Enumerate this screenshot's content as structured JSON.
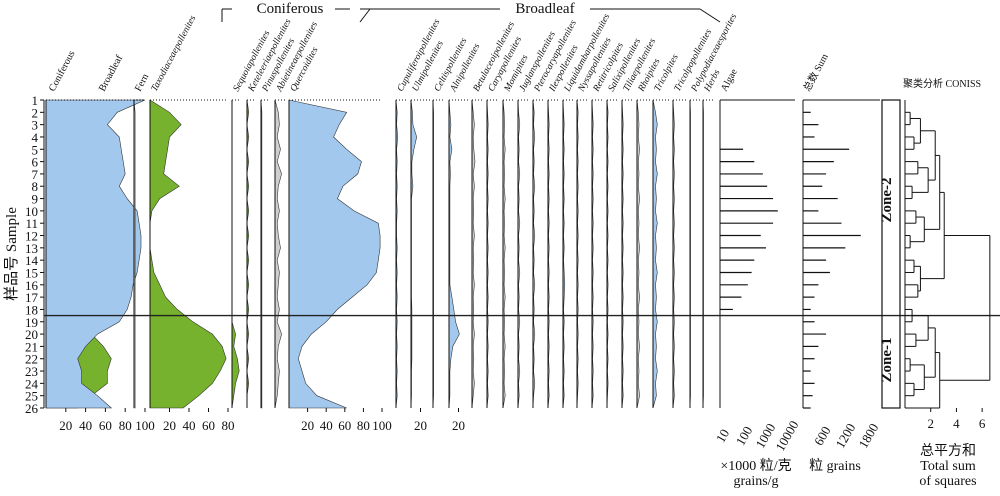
{
  "chart_data": {
    "type": "area",
    "samples": [
      "1",
      "2",
      "3",
      "4",
      "5",
      "6",
      "7",
      "8",
      "9",
      "10",
      "11",
      "12",
      "13",
      "14",
      "15",
      "16",
      "17",
      "18",
      "19",
      "20",
      "21",
      "22",
      "23",
      "24",
      "25",
      "26"
    ],
    "ylabel": "样品号 Sample",
    "group_headers": [
      "Coniferous",
      "Broadleaf"
    ],
    "panels": [
      {
        "name": "Coniferous",
        "ticks": [
          "20",
          "40",
          "60",
          "80",
          "100"
        ],
        "xmax": 100,
        "values": [
          0,
          26,
          36,
          24,
          22,
          20,
          18,
          24,
          16,
          6,
          4,
          2,
          2,
          4,
          6,
          10,
          12,
          16,
          24,
          46,
          58,
          66,
          62,
          62,
          46,
          32
        ],
        "color": "#76b22d"
      },
      {
        "name": "Broadleaf",
        "ticks": [],
        "xmax": 100,
        "values": [
          100,
          72,
          62,
          74,
          76,
          78,
          80,
          74,
          82,
          92,
          94,
          96,
          96,
          94,
          92,
          88,
          86,
          82,
          74,
          52,
          40,
          32,
          36,
          36,
          52,
          66
        ],
        "color": "#a3c8ee"
      },
      {
        "name": "Fern",
        "ticks": [],
        "xmax": 5,
        "values": [
          0,
          0.5,
          0.5,
          0.5,
          0.5,
          0.5,
          0.5,
          0.5,
          0.5,
          0.5,
          0.5,
          0.5,
          0.5,
          0.5,
          0.5,
          0.5,
          0.5,
          0.5,
          0.5,
          0.5,
          0.5,
          0.5,
          0.5,
          0.5,
          0.5,
          0.5
        ],
        "color": "#ffffff"
      },
      {
        "name": "Taxodiaceaepollenites",
        "ticks": [
          "20",
          "40",
          "60",
          "80"
        ],
        "xmax": 80,
        "values": [
          0,
          20,
          32,
          20,
          18,
          16,
          14,
          30,
          10,
          2,
          0,
          0,
          0,
          2,
          4,
          10,
          16,
          28,
          44,
          64,
          74,
          78,
          72,
          64,
          50,
          34
        ],
        "color": "#76b22d"
      },
      {
        "name": "Sequoiapollenites",
        "ticks": [],
        "xmax": 10,
        "values": [
          0,
          0,
          0,
          0,
          0,
          0,
          0,
          0,
          0,
          0,
          0,
          0,
          0,
          0,
          0,
          0,
          0,
          0,
          0,
          4,
          2,
          6,
          8,
          4,
          2,
          0
        ],
        "color": "#76b22d"
      },
      {
        "name": "Keteleeriaepollenites",
        "ticks": [],
        "xmax": 10,
        "values": [
          0,
          2,
          0,
          2,
          0,
          2,
          0,
          2,
          0,
          2,
          0,
          2,
          0,
          2,
          0,
          2,
          0,
          2,
          0,
          2,
          0,
          2,
          0,
          2,
          0,
          0
        ],
        "color": "#76b22d"
      },
      {
        "name": "Pinuspollenites",
        "ticks": [],
        "xmax": 10,
        "values": [
          0,
          1,
          1,
          1,
          1,
          1,
          1,
          1,
          1,
          1,
          1,
          1,
          1,
          1,
          1,
          1,
          1,
          1,
          1,
          1,
          1,
          1,
          1,
          1,
          1,
          1
        ],
        "color": "#76b22d"
      },
      {
        "name": "Abietineaepollenites",
        "ticks": [],
        "xmax": 10,
        "values": [
          0,
          3,
          4,
          2,
          5,
          2,
          6,
          3,
          2,
          4,
          2,
          3,
          5,
          2,
          4,
          3,
          2,
          4,
          2,
          6,
          3,
          2,
          4,
          3,
          2,
          0
        ],
        "color": "#cfcfcf"
      },
      {
        "name": "Quercoidites",
        "ticks": [
          "20",
          "40",
          "60",
          "80",
          "100"
        ],
        "xmax": 100,
        "values": [
          0,
          62,
          54,
          48,
          62,
          78,
          74,
          58,
          52,
          70,
          96,
          98,
          98,
          96,
          94,
          84,
          68,
          52,
          40,
          24,
          14,
          10,
          14,
          18,
          30,
          62
        ],
        "color": "#a3c8ee"
      },
      {
        "name": "Cupuliferoipollenites",
        "ticks": [],
        "xmax": 20,
        "values": [
          0,
          2,
          1,
          3,
          1,
          2,
          1,
          2,
          1,
          2,
          1,
          1,
          2,
          1,
          2,
          1,
          2,
          1,
          2,
          1,
          2,
          1,
          2,
          1,
          2,
          0
        ],
        "color": "#a3c8ee"
      },
      {
        "name": "Ulmipollenites",
        "ticks": [
          "20"
        ],
        "xmax": 40,
        "values": [
          0,
          3,
          4,
          12,
          6,
          2,
          2,
          4,
          1,
          1,
          1,
          1,
          1,
          1,
          1,
          1,
          1,
          2,
          2,
          2,
          2,
          2,
          1,
          1,
          1,
          0
        ],
        "color": "#a3c8ee"
      },
      {
        "name": "Celtispollenites",
        "ticks": [],
        "xmax": 20,
        "values": [
          0,
          1,
          1,
          1,
          1,
          1,
          1,
          1,
          1,
          1,
          1,
          1,
          1,
          1,
          1,
          1,
          1,
          1,
          1,
          1,
          1,
          1,
          1,
          1,
          1,
          0
        ],
        "color": "#cfcfcf"
      },
      {
        "name": "Alnipollenites",
        "ticks": [
          "20"
        ],
        "xmax": 40,
        "values": [
          0,
          2,
          4,
          2,
          6,
          2,
          3,
          2,
          2,
          2,
          2,
          2,
          2,
          2,
          2,
          2,
          6,
          10,
          14,
          22,
          8,
          4,
          2,
          2,
          2,
          0
        ],
        "color": "#a3c8ee"
      },
      {
        "name": "Betulaceoipollenites",
        "ticks": [],
        "xmax": 20,
        "values": [
          0,
          2,
          4,
          2,
          3,
          5,
          2,
          4,
          2,
          3,
          2,
          4,
          2,
          3,
          2,
          4,
          2,
          3,
          2,
          4,
          2,
          3,
          2,
          4,
          2,
          0
        ],
        "color": "#cfcfcf"
      },
      {
        "name": "Caryapollenites",
        "ticks": [],
        "xmax": 20,
        "values": [
          0,
          1,
          2,
          1,
          2,
          1,
          2,
          1,
          2,
          1,
          2,
          1,
          2,
          1,
          2,
          1,
          2,
          1,
          2,
          1,
          2,
          1,
          2,
          1,
          2,
          0
        ],
        "color": "#a3c8ee"
      },
      {
        "name": "Momipites",
        "ticks": [],
        "xmax": 20,
        "values": [
          0,
          2,
          3,
          2,
          4,
          2,
          3,
          2,
          4,
          2,
          3,
          2,
          4,
          2,
          3,
          2,
          4,
          2,
          3,
          2,
          4,
          2,
          3,
          2,
          4,
          0
        ],
        "color": "#cfcfcf"
      },
      {
        "name": "Juglanspollenites",
        "ticks": [],
        "xmax": 20,
        "values": [
          0,
          1,
          3,
          1,
          2,
          1,
          3,
          1,
          2,
          1,
          3,
          1,
          2,
          1,
          3,
          1,
          2,
          1,
          3,
          1,
          2,
          1,
          3,
          1,
          2,
          0
        ],
        "color": "#cfcfcf"
      },
      {
        "name": "Pterocaryapollenites",
        "ticks": [],
        "xmax": 20,
        "values": [
          0,
          2,
          1,
          3,
          1,
          2,
          1,
          3,
          1,
          2,
          1,
          3,
          1,
          2,
          1,
          3,
          1,
          2,
          1,
          3,
          1,
          2,
          1,
          3,
          1,
          0
        ],
        "color": "#cfcfcf"
      },
      {
        "name": "Ilexpollenites",
        "ticks": [],
        "xmax": 20,
        "values": [
          0,
          1,
          2,
          1,
          2,
          1,
          2,
          1,
          2,
          1,
          2,
          1,
          2,
          1,
          2,
          1,
          2,
          1,
          2,
          1,
          2,
          1,
          2,
          1,
          2,
          0
        ],
        "color": "#cfcfcf"
      },
      {
        "name": "Liquidambarpollenites",
        "ticks": [],
        "xmax": 20,
        "values": [
          0,
          1,
          2,
          1,
          2,
          1,
          2,
          1,
          2,
          1,
          2,
          1,
          2,
          1,
          2,
          3,
          2,
          1,
          2,
          1,
          2,
          1,
          2,
          1,
          2,
          0
        ],
        "color": "#a3c8ee"
      },
      {
        "name": "Nyssapollenites",
        "ticks": [],
        "xmax": 20,
        "values": [
          0,
          2,
          1,
          2,
          1,
          2,
          1,
          2,
          1,
          2,
          1,
          2,
          1,
          2,
          1,
          2,
          1,
          2,
          1,
          2,
          1,
          2,
          1,
          2,
          1,
          0
        ],
        "color": "#cfcfcf"
      },
      {
        "name": "Retitricolpites",
        "ticks": [],
        "xmax": 20,
        "values": [
          0,
          1,
          2,
          1,
          2,
          1,
          2,
          1,
          2,
          1,
          2,
          1,
          2,
          1,
          2,
          1,
          2,
          1,
          2,
          1,
          2,
          1,
          2,
          1,
          2,
          0
        ],
        "color": "#cfcfcf"
      },
      {
        "name": "Salixipollenites",
        "ticks": [],
        "xmax": 20,
        "values": [
          0,
          2,
          1,
          2,
          1,
          2,
          1,
          2,
          1,
          2,
          1,
          2,
          1,
          2,
          1,
          2,
          1,
          2,
          1,
          2,
          1,
          2,
          1,
          2,
          1,
          0
        ],
        "color": "#cfcfcf"
      },
      {
        "name": "Tiliaepollenites",
        "ticks": [],
        "xmax": 20,
        "values": [
          0,
          1,
          2,
          1,
          2,
          1,
          2,
          1,
          2,
          1,
          2,
          1,
          2,
          1,
          2,
          1,
          2,
          1,
          2,
          1,
          2,
          1,
          2,
          1,
          2,
          0
        ],
        "color": "#cfcfcf"
      },
      {
        "name": "Rhoipites",
        "ticks": [],
        "xmax": 20,
        "values": [
          0,
          2,
          3,
          2,
          4,
          2,
          3,
          2,
          4,
          2,
          3,
          2,
          4,
          2,
          3,
          2,
          4,
          2,
          3,
          2,
          4,
          2,
          3,
          2,
          4,
          0
        ],
        "color": "#cfcfcf"
      },
      {
        "name": "Tricolpites",
        "ticks": [],
        "xmax": 20,
        "values": [
          0,
          3,
          5,
          3,
          4,
          3,
          5,
          3,
          4,
          3,
          5,
          3,
          4,
          3,
          5,
          3,
          4,
          3,
          5,
          3,
          4,
          3,
          5,
          3,
          4,
          0
        ],
        "color": "#a3c8ee"
      },
      {
        "name": "Tricolpopollenites",
        "ticks": [],
        "xmax": 20,
        "values": [
          0,
          1,
          2,
          1,
          2,
          1,
          2,
          1,
          2,
          1,
          2,
          1,
          2,
          1,
          2,
          1,
          2,
          1,
          2,
          1,
          2,
          1,
          2,
          1,
          2,
          0
        ],
        "color": "#cfcfcf"
      },
      {
        "name": "Polypodiaceaesporites",
        "ticks": [],
        "xmax": 20,
        "values": [
          0,
          1,
          1,
          1,
          1,
          1,
          1,
          1,
          1,
          1,
          1,
          1,
          1,
          1,
          1,
          1,
          1,
          1,
          1,
          1,
          1,
          1,
          1,
          1,
          1,
          0
        ],
        "color": "#cfcfcf"
      },
      {
        "name": "Herbs",
        "ticks": [],
        "xmax": 20,
        "values": [
          0,
          1,
          1,
          1,
          1,
          1,
          1,
          1,
          1,
          1,
          1,
          1,
          1,
          1,
          1,
          1,
          1,
          1,
          1,
          1,
          1,
          1,
          1,
          1,
          1,
          0
        ],
        "color": "#cfcfcf"
      }
    ],
    "bar_panels": [
      {
        "name": "Algae",
        "ticks": [
          "10",
          "100",
          "1000",
          "10000"
        ],
        "scale": "log",
        "values": [
          0,
          0,
          0,
          0,
          60,
          200,
          500,
          800,
          1500,
          2500,
          1500,
          400,
          700,
          200,
          150,
          100,
          50,
          20,
          0,
          0,
          0,
          0,
          0,
          0,
          0,
          0
        ],
        "xlabel": [
          "×1000 粒/克",
          "grains/g"
        ]
      },
      {
        "name": "总数 Sum",
        "ticks": [
          "600",
          "1200",
          "1800"
        ],
        "scale": "linear",
        "values": [
          0,
          200,
          400,
          300,
          1200,
          800,
          600,
          500,
          900,
          400,
          1000,
          1500,
          1100,
          600,
          700,
          400,
          300,
          200,
          300,
          600,
          400,
          300,
          200,
          300,
          250,
          200
        ],
        "xlabel": [
          "粒 grains"
        ]
      }
    ],
    "cluster": {
      "title": "聚类分析 CONISS",
      "ticks": [
        "2",
        "4",
        "6"
      ],
      "xlabel": [
        "总平方和",
        "Total sum",
        "of squares"
      ],
      "zones": [
        "Zone-2",
        "Zone-1"
      ],
      "zone_boundary_sample": 18.5
    }
  }
}
